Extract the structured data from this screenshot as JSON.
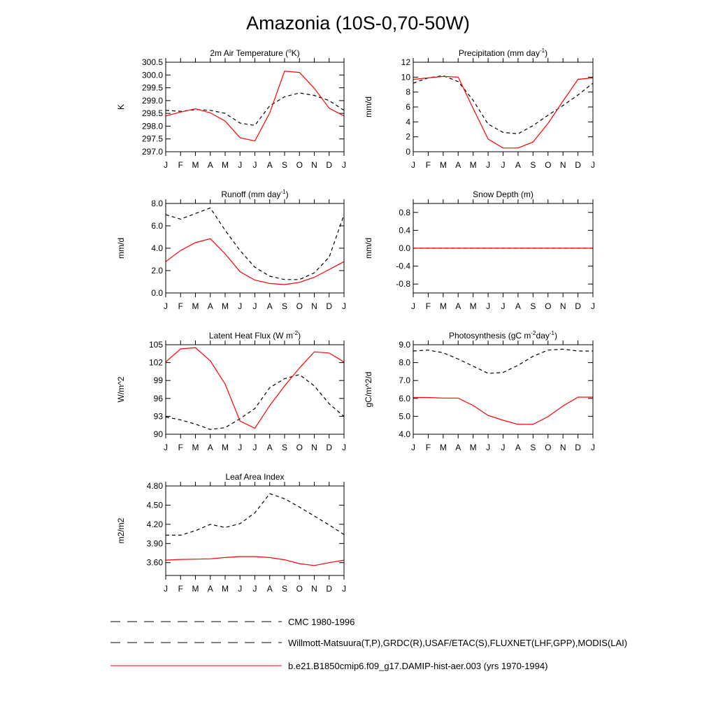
{
  "title": "Amazonia (10S-0,70-50W)",
  "months": [
    "J",
    "F",
    "M",
    "A",
    "M",
    "J",
    "J",
    "A",
    "S",
    "O",
    "N",
    "D",
    "J"
  ],
  "colors": {
    "model": "#ff0000",
    "obs": "#000000",
    "axis": "#000000"
  },
  "legend": [
    {
      "label": "CMC 1980-1996",
      "style": "dashed",
      "color": "#000000"
    },
    {
      "label": "Willmott-Matsuura(T,P),GRDC(R),USAF/ETAC(S),FLUXNET(LHF,GPP),MODIS(LAI)",
      "style": "dashed",
      "color": "#000000"
    },
    {
      "label": "b.e21.B1850cmip6.f09_g17.DAMIP-hist-aer.003 (yrs 1970-1994)",
      "style": "solid",
      "color": "#ff0000"
    }
  ],
  "chart_data": [
    {
      "type": "line",
      "title": "2m Air Temperature (",
      "title_sup": "o",
      "title_after": "K)",
      "ylabel": "K",
      "ylim": [
        297.0,
        300.5
      ],
      "yticks": [
        297.0,
        297.5,
        298.0,
        298.5,
        299.0,
        299.5,
        300.0,
        300.5
      ],
      "ytick_labels": [
        "297.0",
        "297.5",
        "298.0",
        "298.5",
        "299.0",
        "299.5",
        "300.0",
        "300.5"
      ],
      "series": [
        {
          "style": "dashed",
          "values": [
            298.62,
            298.58,
            298.65,
            298.62,
            298.5,
            298.12,
            298.03,
            298.8,
            299.15,
            299.3,
            299.2,
            299.0,
            298.62
          ]
        },
        {
          "style": "solid",
          "values": [
            298.4,
            298.55,
            298.68,
            298.52,
            298.2,
            297.55,
            297.42,
            298.52,
            300.15,
            300.1,
            299.48,
            298.7,
            298.4
          ]
        }
      ]
    },
    {
      "type": "line",
      "title": "Precipitation (mm day",
      "title_sup": "-1",
      "title_after": ")",
      "ylabel": "mm/d",
      "ylim": [
        0,
        12
      ],
      "yticks": [
        0,
        2,
        4,
        6,
        8,
        10,
        12
      ],
      "ytick_labels": [
        "0",
        "2",
        "4",
        "6",
        "8",
        "10",
        "12"
      ],
      "series": [
        {
          "style": "dashed",
          "values": [
            9.2,
            9.9,
            10.2,
            9.4,
            6.9,
            3.7,
            2.6,
            2.4,
            3.5,
            4.9,
            6.2,
            7.6,
            9.2
          ]
        },
        {
          "style": "solid",
          "values": [
            9.7,
            9.9,
            10.1,
            10.0,
            5.8,
            1.7,
            0.5,
            0.5,
            1.3,
            3.8,
            6.8,
            9.7,
            9.9
          ]
        }
      ]
    },
    {
      "type": "line",
      "title": "Runoff (mm day",
      "title_sup": "-1",
      "title_after": ")",
      "ylabel": "mm/d",
      "ylim": [
        0,
        8
      ],
      "yticks": [
        0,
        2,
        4,
        6,
        8
      ],
      "ytick_labels": [
        "0.0",
        "2.0",
        "4.0",
        "6.0",
        "8.0"
      ],
      "series": [
        {
          "style": "dashed",
          "values": [
            7.0,
            6.6,
            7.1,
            7.6,
            5.6,
            3.8,
            2.3,
            1.5,
            1.2,
            1.2,
            1.8,
            3.2,
            7.0
          ]
        },
        {
          "style": "solid",
          "values": [
            2.8,
            3.8,
            4.5,
            4.85,
            3.5,
            1.9,
            1.15,
            0.85,
            0.75,
            0.95,
            1.4,
            2.1,
            2.8
          ]
        }
      ]
    },
    {
      "type": "line",
      "title": "Snow Depth (m)",
      "title_sup": "",
      "title_after": "",
      "ylabel": "mm/d",
      "ylim": [
        -1.0,
        1.0
      ],
      "yticks": [
        -0.8,
        -0.4,
        0.0,
        0.4,
        0.8
      ],
      "ytick_labels": [
        "-0.8",
        "-0.4",
        "0.0",
        "0.4",
        "0.8"
      ],
      "series": [
        {
          "style": "dashed",
          "values": [
            0,
            0,
            0,
            0,
            0,
            0,
            0,
            0,
            0,
            0,
            0,
            0,
            0
          ]
        },
        {
          "style": "solid",
          "values": [
            0,
            0,
            0,
            0,
            0,
            0,
            0,
            0,
            0,
            0,
            0,
            0,
            0
          ]
        }
      ]
    },
    {
      "type": "line",
      "title": "Latent Heat Flux (W m",
      "title_sup": "-2",
      "title_after": ")",
      "ylabel": "W/m^2",
      "ylim": [
        90,
        105
      ],
      "yticks": [
        90,
        93,
        96,
        99,
        102,
        105
      ],
      "ytick_labels": [
        "90",
        "93",
        "96",
        "99",
        "102",
        "105"
      ],
      "series": [
        {
          "style": "dashed",
          "values": [
            92.9,
            92.4,
            91.7,
            90.8,
            91.1,
            92.6,
            94.3,
            97.8,
            99.3,
            100.0,
            98.1,
            95.1,
            93.0
          ]
        },
        {
          "style": "solid",
          "values": [
            102.1,
            104.3,
            104.5,
            102.3,
            98.4,
            92.2,
            91.0,
            94.8,
            98.1,
            101.1,
            103.8,
            103.6,
            102.1
          ]
        }
      ]
    },
    {
      "type": "line",
      "title": "Photosynthesis (gC m",
      "title_sup": "-2",
      "title_after": "day",
      "title_sup2": "-1",
      "title_after2": ")",
      "ylabel": "gC/m^2/d",
      "ylim": [
        4.0,
        9.0
      ],
      "yticks": [
        4,
        5,
        6,
        7,
        8,
        9
      ],
      "ytick_labels": [
        "4.0",
        "5.0",
        "6.0",
        "7.0",
        "8.0",
        "9.0"
      ],
      "series": [
        {
          "style": "dashed",
          "values": [
            8.65,
            8.7,
            8.55,
            8.2,
            7.8,
            7.4,
            7.45,
            7.85,
            8.35,
            8.7,
            8.75,
            8.65,
            8.65
          ]
        },
        {
          "style": "solid",
          "values": [
            6.05,
            6.05,
            6.02,
            6.02,
            5.6,
            5.05,
            4.78,
            4.55,
            4.55,
            4.98,
            5.58,
            6.07,
            6.07
          ]
        }
      ]
    },
    {
      "type": "line",
      "title": "Leaf Area Index",
      "title_sup": "",
      "title_after": "",
      "ylabel": "m2/m2",
      "ylim": [
        3.4,
        4.8
      ],
      "yticks": [
        3.6,
        3.9,
        4.2,
        4.5,
        4.8
      ],
      "ytick_labels": [
        "3.60",
        "3.90",
        "4.20",
        "4.50",
        "4.80"
      ],
      "series": [
        {
          "style": "dashed",
          "values": [
            4.03,
            4.03,
            4.1,
            4.2,
            4.15,
            4.21,
            4.38,
            4.68,
            4.6,
            4.47,
            4.33,
            4.19,
            4.04
          ]
        },
        {
          "style": "solid",
          "values": [
            3.64,
            3.65,
            3.655,
            3.66,
            3.68,
            3.695,
            3.695,
            3.68,
            3.645,
            3.585,
            3.555,
            3.6,
            3.64
          ]
        }
      ]
    }
  ]
}
